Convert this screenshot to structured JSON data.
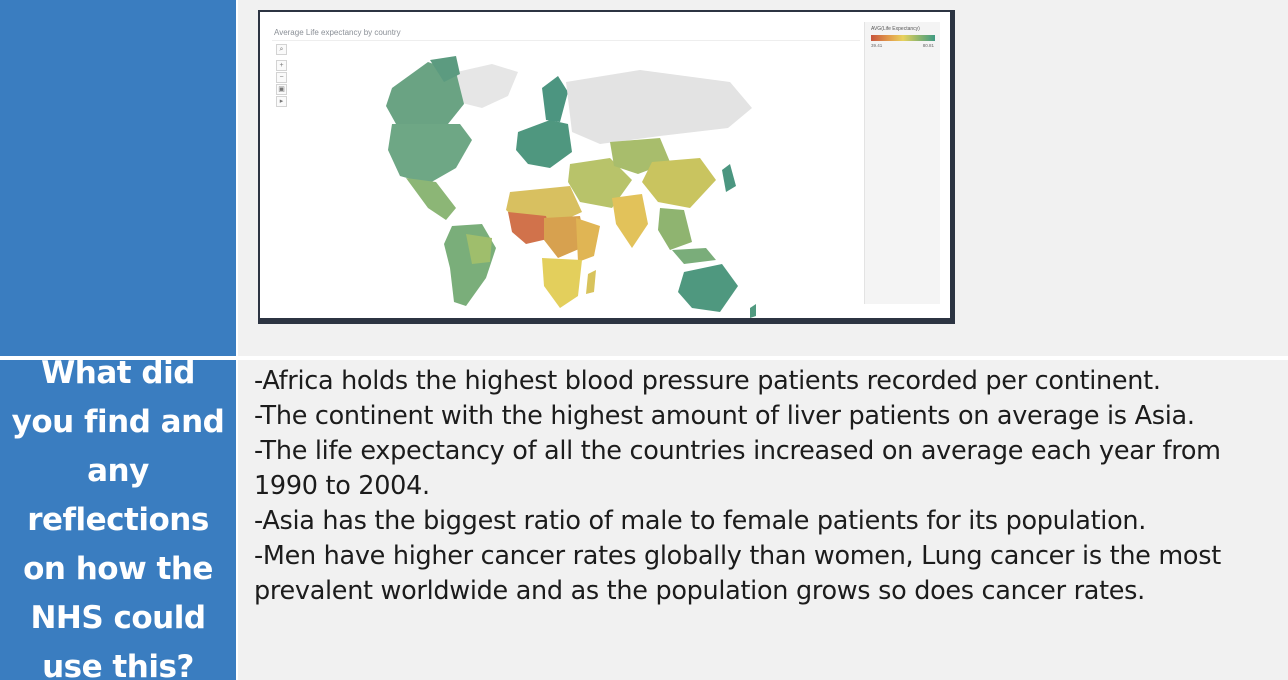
{
  "colors": {
    "blue": "#3a7dc0",
    "grey": "#f1f1f1"
  },
  "screenshot": {
    "title": "Average Life expectancy by country",
    "tools": [
      "search-icon",
      "zoom-in-icon",
      "zoom-out-icon",
      "pin-icon",
      "play-icon"
    ],
    "legend": {
      "title": "AVG(Life Expectancy)",
      "min": "39.41",
      "max": "80.81"
    }
  },
  "question": "What did you find and any reflections on how the NHS could use this?",
  "findings": [
    "-Africa holds the highest blood pressure patients recorded per continent.",
    "-The continent with the highest amount of liver patients on average is Asia.",
    "-The life expectancy of all the countries increased on average each year from 1990 to 2004.",
    "-Asia has the biggest ratio of male to female patients for its population.",
    "-Men have higher cancer rates globally than women, Lung cancer is the most prevalent worldwide and as the population grows so does cancer rates."
  ]
}
